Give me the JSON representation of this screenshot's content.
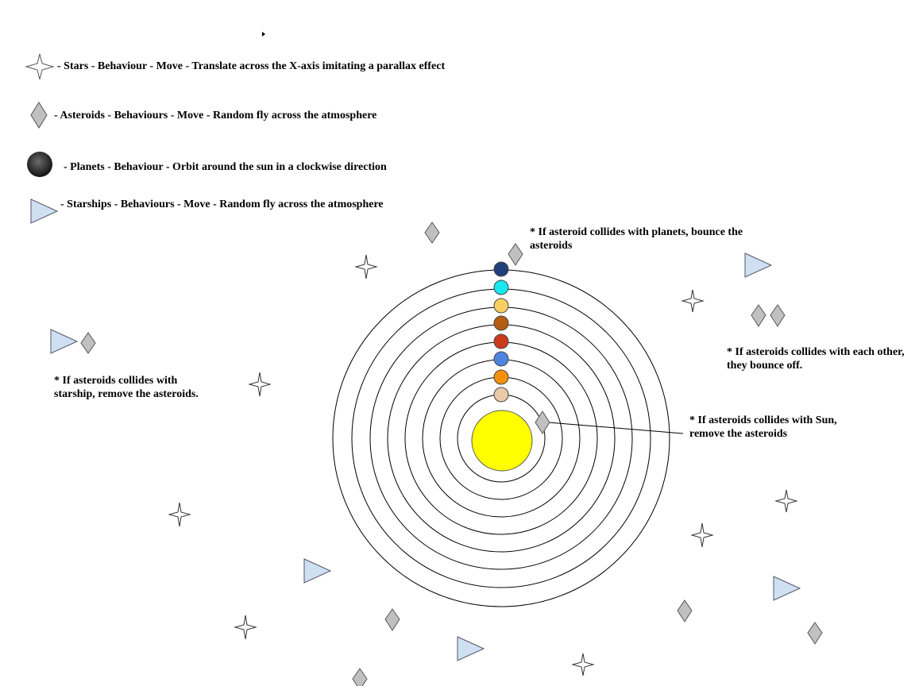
{
  "legend": {
    "stars": "- Stars  - Behaviour - Move - Translate across the X-axis imitating a parallax effect",
    "asteroids": "- Asteroids - Behaviours - Move - Random fly across the atmosphere",
    "planets": "- Planets - Behaviour - Orbit around the sun in a clockwise direction",
    "starships": "- Starships - Behaviours - Move - Random fly across the atmosphere"
  },
  "notes": {
    "planet_collision": "* If asteroid collides with planets, bounce the asteroids",
    "asteroid_collision": "* If asteroids collides with each other, they bounce off.",
    "sun_collision": "* If asteroids collides with Sun, remove the asteroids",
    "starship_collision": "* If asteroids collides with starship, remove the asteroids."
  },
  "colors": {
    "sun": "#ffff00",
    "asteroid": "#c0c0c0",
    "starship": "#cfe0f3",
    "planets": [
      "#e8c9a8",
      "#f5900d",
      "#4d84e0",
      "#cc3a1c",
      "#b35e12",
      "#f7cf63",
      "#19e6ed",
      "#203f7a"
    ]
  }
}
